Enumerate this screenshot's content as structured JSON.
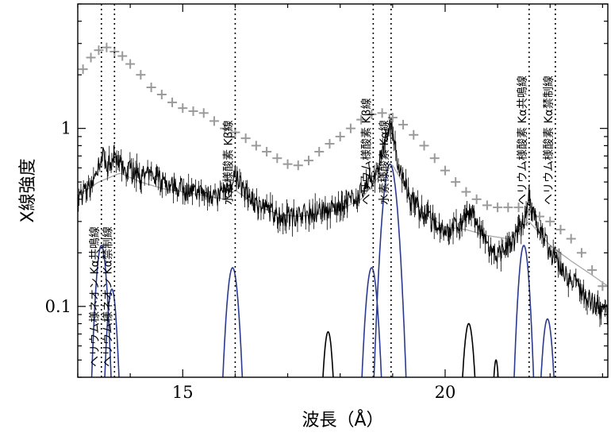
{
  "chart_data": {
    "type": "line",
    "xlabel": "波長（Å）",
    "ylabel": "X線強度",
    "x_range": [
      13.0,
      23.1
    ],
    "y_range_log": [
      0.04,
      5.0
    ],
    "y_scale": "log",
    "x_ticks": [
      15,
      20
    ],
    "x_tick_labels": [
      "15",
      "20"
    ],
    "y_ticks": [
      0.1,
      1
    ],
    "y_tick_labels": [
      "0.1",
      "1"
    ],
    "grid": false,
    "legend": "none",
    "line_markers": [
      {
        "label": "ヘリウム様ネオン Kα共鳴線",
        "x": 13.45
      },
      {
        "label": "ヘリウム様ネオン Kα禁制線",
        "x": 13.7
      },
      {
        "label": "水素様酸素 Kβ線",
        "x": 16.0
      },
      {
        "label": "ヘリウム様酸素 Kβ線",
        "x": 18.63
      },
      {
        "label": "水素様酸素 Kα線",
        "x": 18.97
      },
      {
        "label": "ヘリウム様酸素 Kα共鳴線",
        "x": 21.6
      },
      {
        "label": "ヘリウム様酸素 Kα禁制線",
        "x": 22.1
      }
    ],
    "series": [
      {
        "style": "gray error-bar crosses",
        "color": "#9a9a9a",
        "x": [
          13.1,
          13.25,
          13.4,
          13.55,
          13.7,
          13.85,
          14.0,
          14.2,
          14.4,
          14.6,
          14.8,
          15.0,
          15.2,
          15.4,
          15.6,
          15.8,
          16.0,
          16.2,
          16.4,
          16.6,
          16.8,
          17.0,
          17.2,
          17.4,
          17.6,
          17.8,
          18.0,
          18.2,
          18.4,
          18.6,
          18.8,
          19.0,
          19.2,
          19.4,
          19.6,
          19.8,
          20.0,
          20.2,
          20.4,
          20.6,
          20.8,
          21.0,
          21.2,
          21.4,
          21.6,
          21.8,
          22.0,
          22.2,
          22.4,
          22.6,
          22.8,
          23.0
        ],
        "y": [
          2.15,
          2.5,
          2.75,
          2.85,
          2.7,
          2.55,
          2.3,
          2.0,
          1.7,
          1.55,
          1.4,
          1.3,
          1.25,
          1.22,
          1.1,
          1.0,
          0.95,
          0.88,
          0.8,
          0.74,
          0.68,
          0.63,
          0.62,
          0.66,
          0.74,
          0.82,
          0.9,
          1.0,
          1.12,
          1.2,
          1.22,
          1.15,
          1.05,
          0.92,
          0.8,
          0.68,
          0.58,
          0.5,
          0.44,
          0.4,
          0.37,
          0.36,
          0.36,
          0.36,
          0.34,
          0.32,
          0.3,
          0.27,
          0.24,
          0.2,
          0.16,
          0.13
        ],
        "error_y_fraction": 0.06
      },
      {
        "style": "black jagged spectrum",
        "color": "#000000",
        "x": [
          13.0,
          13.2,
          13.35,
          13.45,
          13.55,
          13.7,
          13.9,
          14.2,
          14.5,
          14.8,
          15.1,
          15.4,
          15.7,
          15.9,
          16.0,
          16.15,
          16.4,
          16.7,
          16.9,
          17.2,
          17.5,
          17.8,
          18.1,
          18.4,
          18.6,
          18.75,
          18.85,
          18.97,
          19.1,
          19.3,
          19.6,
          19.9,
          20.1,
          20.3,
          20.5,
          20.7,
          20.9,
          21.1,
          21.3,
          21.5,
          21.6,
          21.75,
          22.0,
          22.3,
          22.6,
          22.9,
          23.1
        ],
        "y": [
          0.4,
          0.46,
          0.55,
          0.75,
          0.62,
          0.65,
          0.6,
          0.55,
          0.52,
          0.48,
          0.45,
          0.43,
          0.42,
          0.44,
          0.55,
          0.45,
          0.38,
          0.34,
          0.32,
          0.33,
          0.34,
          0.35,
          0.38,
          0.44,
          0.52,
          0.65,
          0.85,
          1.05,
          0.65,
          0.42,
          0.33,
          0.28,
          0.27,
          0.3,
          0.34,
          0.25,
          0.2,
          0.2,
          0.23,
          0.3,
          0.4,
          0.3,
          0.2,
          0.15,
          0.12,
          0.1,
          0.09
        ],
        "noise_fraction": 0.14
      },
      {
        "style": "gray smooth model",
        "color": "#a8a8a8",
        "x": [
          13.0,
          13.4,
          13.8,
          14.2,
          14.6,
          15.0,
          15.4,
          15.8,
          16.0,
          16.4,
          16.8,
          17.2,
          17.6,
          18.0,
          18.4,
          18.7,
          19.0,
          19.3,
          19.6,
          20.0,
          20.4,
          20.8,
          21.2,
          21.6,
          22.0,
          22.4,
          22.8,
          23.1
        ],
        "y": [
          0.42,
          0.5,
          0.56,
          0.5,
          0.46,
          0.44,
          0.42,
          0.4,
          0.45,
          0.37,
          0.33,
          0.32,
          0.33,
          0.35,
          0.4,
          0.52,
          0.62,
          0.44,
          0.33,
          0.28,
          0.27,
          0.25,
          0.24,
          0.3,
          0.22,
          0.18,
          0.15,
          0.13
        ]
      },
      {
        "style": "blue line-profile peaks",
        "color": "#2a3a8f",
        "peaks": [
          {
            "x": 13.45,
            "peak": 0.22,
            "width": 0.1
          },
          {
            "x": 13.65,
            "peak": 0.125,
            "width": 0.09
          },
          {
            "x": 15.95,
            "peak": 0.165,
            "width": 0.11
          },
          {
            "x": 18.6,
            "peak": 0.165,
            "width": 0.11
          },
          {
            "x": 18.95,
            "peak": 0.63,
            "width": 0.13
          },
          {
            "x": 21.5,
            "peak": 0.22,
            "width": 0.1
          },
          {
            "x": 21.95,
            "peak": 0.085,
            "width": 0.1
          }
        ]
      },
      {
        "style": "black line-profile peaks",
        "color": "#000000",
        "peaks": [
          {
            "x": 17.77,
            "peak": 0.072,
            "width": 0.09
          },
          {
            "x": 20.45,
            "peak": 0.08,
            "width": 0.1
          },
          {
            "x": 20.97,
            "peak": 0.05,
            "width": 0.06
          }
        ]
      }
    ]
  }
}
